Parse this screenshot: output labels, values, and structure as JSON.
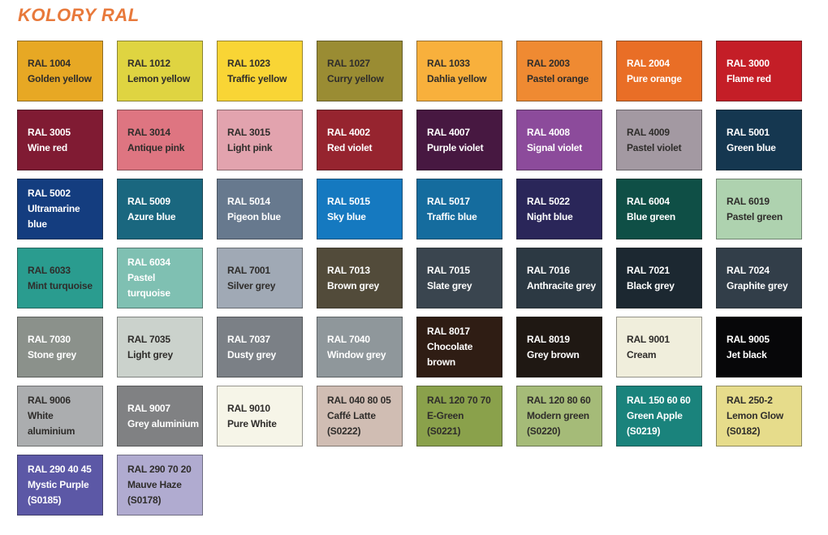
{
  "chart_data": {
    "type": "table",
    "title": "KOLORY RAL",
    "title_color": "#E8793B",
    "text_dark_color": "#2F2D2B",
    "text_light_color": "#FFFFFF",
    "layout": {
      "columns": 8,
      "grid": "on",
      "legend": "none"
    },
    "columns": [
      "code",
      "name",
      "sub_code",
      "hex",
      "text"
    ],
    "swatches": [
      {
        "code": "RAL 1004",
        "name": "Golden yellow",
        "sub": "",
        "hex": "#E7A824",
        "text": "dark"
      },
      {
        "code": "RAL 1012",
        "name": "Lemon yellow",
        "sub": "",
        "hex": "#DFD441",
        "text": "dark"
      },
      {
        "code": "RAL 1023",
        "name": "Traffic yellow",
        "sub": "",
        "hex": "#F9D535",
        "text": "dark"
      },
      {
        "code": "RAL 1027",
        "name": "Curry yellow",
        "sub": "",
        "hex": "#9A8C33",
        "text": "dark"
      },
      {
        "code": "RAL 1033",
        "name": "Dahlia yellow",
        "sub": "",
        "hex": "#F8B03C",
        "text": "dark"
      },
      {
        "code": "RAL 2003",
        "name": "Pastel orange",
        "sub": "",
        "hex": "#EF8A32",
        "text": "dark"
      },
      {
        "code": "RAL 2004",
        "name": "Pure orange",
        "sub": "",
        "hex": "#E96E26",
        "text": "light"
      },
      {
        "code": "RAL 3000",
        "name": "Flame red",
        "sub": "",
        "hex": "#C41E27",
        "text": "light"
      },
      {
        "code": "RAL 3005",
        "name": "Wine red",
        "sub": "",
        "hex": "#801B33",
        "text": "light"
      },
      {
        "code": "RAL 3014",
        "name": "Antique pink",
        "sub": "",
        "hex": "#DE7581",
        "text": "dark"
      },
      {
        "code": "RAL 3015",
        "name": "Light pink",
        "sub": "",
        "hex": "#E2A3AE",
        "text": "dark"
      },
      {
        "code": "RAL 4002",
        "name": "Red violet",
        "sub": "",
        "hex": "#96242F",
        "text": "light"
      },
      {
        "code": "RAL 4007",
        "name": "Purple violet",
        "sub": "",
        "hex": "#471841",
        "text": "light"
      },
      {
        "code": "RAL 4008",
        "name": "Signal violet",
        "sub": "",
        "hex": "#8C4B9B",
        "text": "light"
      },
      {
        "code": "RAL 4009",
        "name": "Pastel violet",
        "sub": "",
        "hex": "#A399A2",
        "text": "dark"
      },
      {
        "code": "RAL 5001",
        "name": "Green blue",
        "sub": "",
        "hex": "#153750",
        "text": "light"
      },
      {
        "code": "RAL 5002",
        "name": "Ultramarine blue",
        "sub": "",
        "hex": "#143D7F",
        "text": "light"
      },
      {
        "code": "RAL 5009",
        "name": "Azure blue",
        "sub": "",
        "hex": "#1A677F",
        "text": "light"
      },
      {
        "code": "RAL 5014",
        "name": "Pigeon blue",
        "sub": "",
        "hex": "#67798E",
        "text": "light"
      },
      {
        "code": "RAL 5015",
        "name": "Sky blue",
        "sub": "",
        "hex": "#1579C0",
        "text": "light"
      },
      {
        "code": "RAL 5017",
        "name": "Traffic blue",
        "sub": "",
        "hex": "#156C9E",
        "text": "light"
      },
      {
        "code": "RAL 5022",
        "name": "Night blue",
        "sub": "",
        "hex": "#2A2659",
        "text": "light"
      },
      {
        "code": "RAL 6004",
        "name": "Blue green",
        "sub": "",
        "hex": "#0F4F46",
        "text": "light"
      },
      {
        "code": "RAL 6019",
        "name": "Pastel green",
        "sub": "",
        "hex": "#AED2AF",
        "text": "dark"
      },
      {
        "code": "RAL 6033",
        "name": "Mint turquoise",
        "sub": "",
        "hex": "#2A9C8F",
        "text": "dark"
      },
      {
        "code": "RAL 6034",
        "name": "Pastel turquoise",
        "sub": "",
        "hex": "#7FC0B2",
        "text": "light"
      },
      {
        "code": "RAL 7001",
        "name": "Silver grey",
        "sub": "",
        "hex": "#A0A9B5",
        "text": "dark"
      },
      {
        "code": "RAL 7013",
        "name": "Brown grey",
        "sub": "",
        "hex": "#524B3A",
        "text": "light"
      },
      {
        "code": "RAL 7015",
        "name": "Slate grey",
        "sub": "",
        "hex": "#3A454F",
        "text": "light"
      },
      {
        "code": "RAL 7016",
        "name": "Anthracite grey",
        "sub": "",
        "hex": "#2C3943",
        "text": "light"
      },
      {
        "code": "RAL 7021",
        "name": "Black grey",
        "sub": "",
        "hex": "#1C2831",
        "text": "light"
      },
      {
        "code": "RAL 7024",
        "name": "Graphite grey",
        "sub": "",
        "hex": "#323E49",
        "text": "light"
      },
      {
        "code": "RAL 7030",
        "name": "Stone grey",
        "sub": "",
        "hex": "#8B918B",
        "text": "light"
      },
      {
        "code": "RAL 7035",
        "name": "Light grey",
        "sub": "",
        "hex": "#CBD2CC",
        "text": "dark"
      },
      {
        "code": "RAL 7037",
        "name": "Dusty grey",
        "sub": "",
        "hex": "#7B8086",
        "text": "light"
      },
      {
        "code": "RAL 7040",
        "name": "Window grey",
        "sub": "",
        "hex": "#8F979B",
        "text": "light"
      },
      {
        "code": "RAL 8017",
        "name": "Chocolate brown",
        "sub": "",
        "hex": "#2F1D14",
        "text": "light"
      },
      {
        "code": "RAL 8019",
        "name": "Grey brown",
        "sub": "",
        "hex": "#1F1813",
        "text": "light"
      },
      {
        "code": "RAL 9001",
        "name": "Cream",
        "sub": "",
        "hex": "#F0EEDC",
        "text": "dark"
      },
      {
        "code": "RAL 9005",
        "name": "Jet black",
        "sub": "",
        "hex": "#070709",
        "text": "light"
      },
      {
        "code": "RAL 9006",
        "name": "White aluminium",
        "sub": "",
        "hex": "#ABADAF",
        "text": "dark"
      },
      {
        "code": "RAL 9007",
        "name": "Grey aluminium",
        "sub": "",
        "hex": "#808183",
        "text": "light"
      },
      {
        "code": "RAL 9010",
        "name": "Pure White",
        "sub": "",
        "hex": "#F6F5E8",
        "text": "dark"
      },
      {
        "code": "RAL 040 80 05",
        "name": "Caffé Latte",
        "sub": "(S0222)",
        "hex": "#D0BDB3",
        "text": "dark"
      },
      {
        "code": "RAL 120 70 70",
        "name": "E-Green",
        "sub": "(S0221)",
        "hex": "#8AA14B",
        "text": "dark"
      },
      {
        "code": "RAL 120 80 60",
        "name": "Modern green",
        "sub": "(S0220)",
        "hex": "#A5BB78",
        "text": "dark"
      },
      {
        "code": "RAL 150 60 60",
        "name": "Green Apple",
        "sub": "(S0219)",
        "hex": "#1A837C",
        "text": "light"
      },
      {
        "code": "RAL 250-2",
        "name": "Lemon Glow",
        "sub": "(S0182)",
        "hex": "#E6DC8B",
        "text": "dark"
      },
      {
        "code": "RAL 290 40 45",
        "name": "Mystic Purple",
        "sub": "(S0185)",
        "hex": "#5C58A6",
        "text": "light"
      },
      {
        "code": "RAL 290 70 20",
        "name": "Mauve Haze",
        "sub": "(S0178)",
        "hex": "#B0ABD0",
        "text": "dark"
      }
    ]
  }
}
